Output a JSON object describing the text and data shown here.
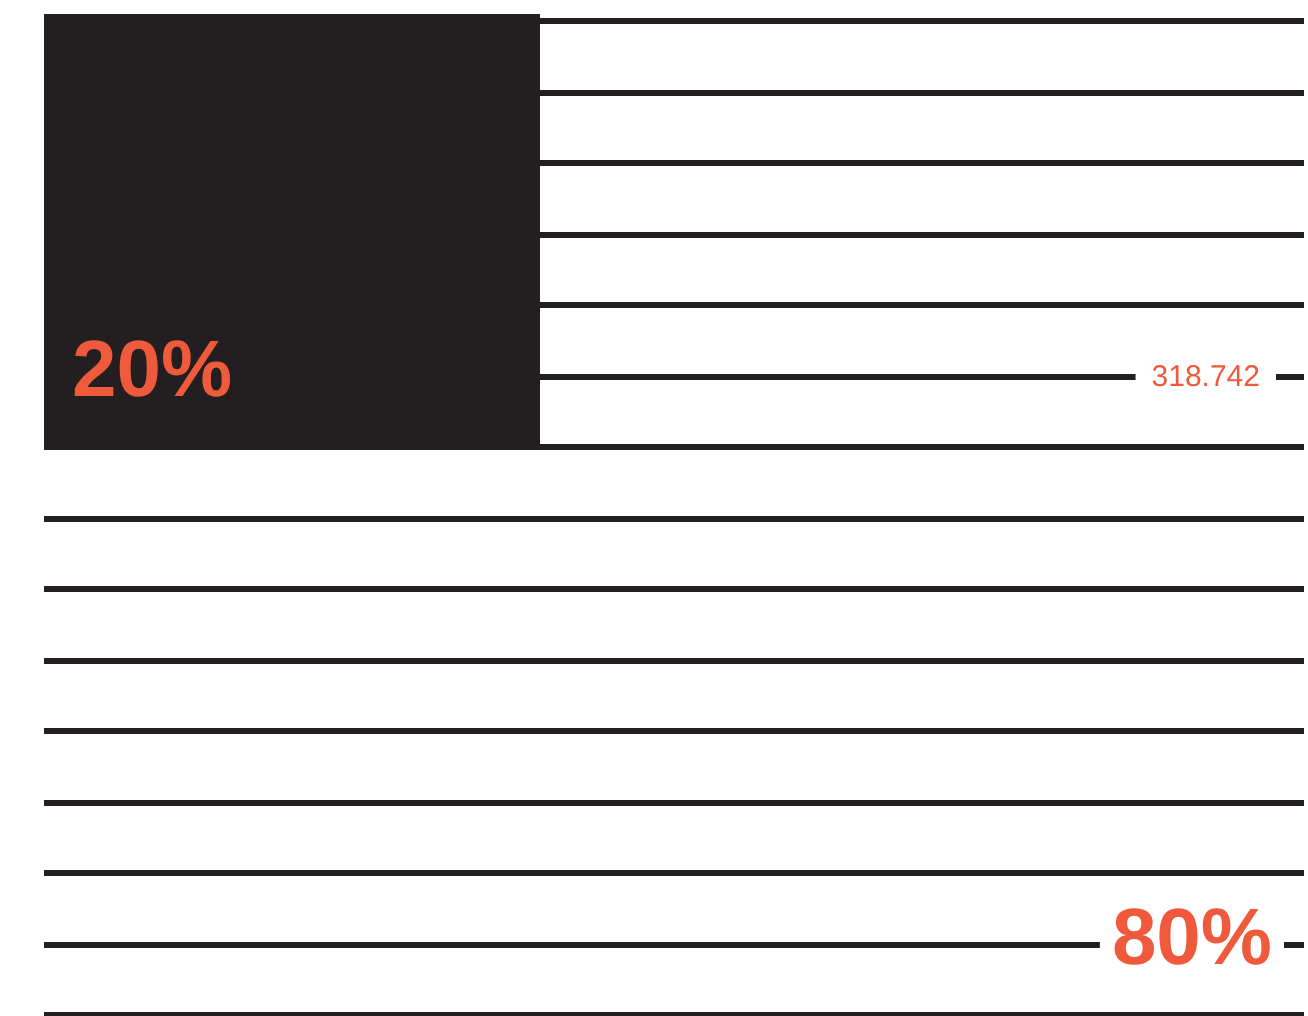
{
  "chart_data": {
    "type": "other",
    "categories": [
      null,
      null
    ],
    "values": [
      20,
      80
    ],
    "colors": [
      "#231f20",
      "#f05a3c"
    ],
    "value_labels": [
      "20%",
      "80%"
    ],
    "annotations": [
      "318.742"
    ]
  }
}
